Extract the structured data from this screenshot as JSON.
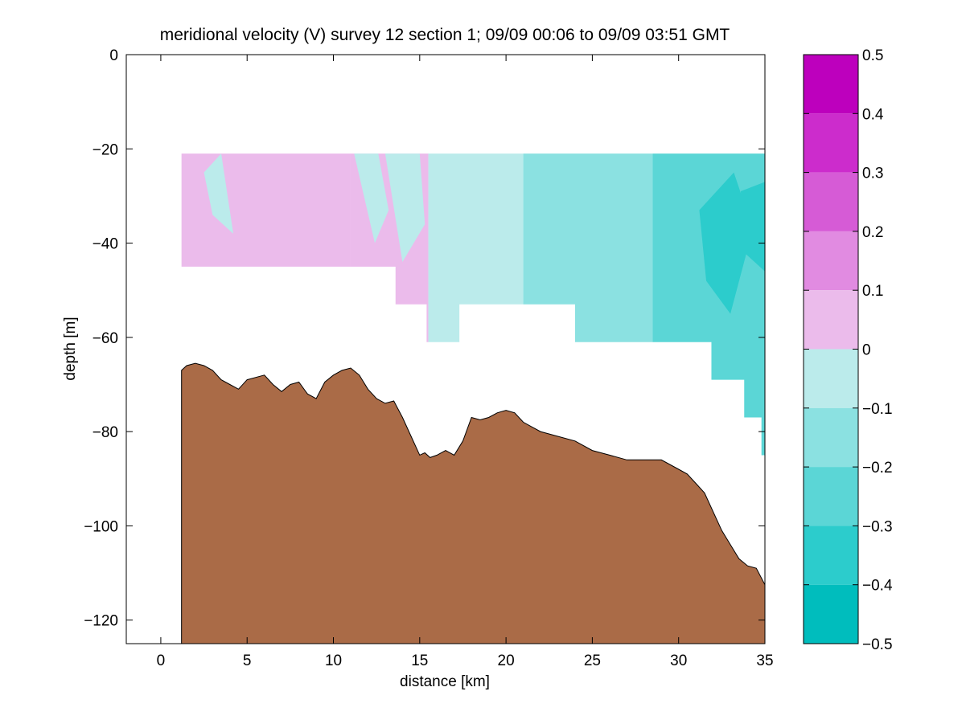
{
  "chart_data": {
    "type": "contour",
    "title": "meridional velocity (V) survey 12 section 1; 09/09 00:06 to 09/09 03:51 GMT",
    "xlabel": "distance [km]",
    "ylabel": "depth [m]",
    "xlim": [
      -2,
      35
    ],
    "ylim": [
      -125,
      0
    ],
    "xticks": [
      0,
      5,
      10,
      15,
      20,
      25,
      30,
      35
    ],
    "xtick_labels": [
      "0",
      "5",
      "10",
      "15",
      "20",
      "25",
      "30",
      "35"
    ],
    "yticks": [
      0,
      -20,
      -40,
      -60,
      -80,
      -100,
      -120
    ],
    "ytick_labels": [
      "0",
      "−20",
      "−40",
      "−60",
      "−80",
      "−100",
      "−120"
    ],
    "colorbar": {
      "range": [
        -0.5,
        0.5
      ],
      "ticks": [
        0.5,
        0.4,
        0.3,
        0.2,
        0.1,
        0,
        -0.1,
        -0.2,
        -0.3,
        -0.4,
        -0.5
      ],
      "tick_labels": [
        "0.5",
        "0.4",
        "0.3",
        "0.2",
        "0.1",
        "0",
        "−0.1",
        "−0.2",
        "−0.3",
        "−0.4",
        "−0.5"
      ],
      "bands": [
        {
          "from": 0.4,
          "to": 0.5,
          "color": "#bd00bd"
        },
        {
          "from": 0.3,
          "to": 0.4,
          "color": "#cc2ccc"
        },
        {
          "from": 0.2,
          "to": 0.3,
          "color": "#d65bd6"
        },
        {
          "from": 0.1,
          "to": 0.2,
          "color": "#e18be1"
        },
        {
          "from": 0.0,
          "to": 0.1,
          "color": "#ebbbeb"
        },
        {
          "from": -0.1,
          "to": 0.0,
          "color": "#bbebeb"
        },
        {
          "from": -0.2,
          "to": -0.1,
          "color": "#8be1e1"
        },
        {
          "from": -0.3,
          "to": -0.2,
          "color": "#5bd6d6"
        },
        {
          "from": -0.4,
          "to": -0.3,
          "color": "#2ccccc"
        },
        {
          "from": -0.5,
          "to": -0.4,
          "color": "#00bdbd"
        }
      ]
    },
    "data_region": {
      "x_range": [
        1.2,
        35
      ],
      "top_depth": -21,
      "bottom_steps": [
        {
          "x0": 1.2,
          "x1": 13.6,
          "depth": -45
        },
        {
          "x0": 13.6,
          "x1": 15.4,
          "depth": -53
        },
        {
          "x0": 15.4,
          "x1": 17.3,
          "depth": -61
        },
        {
          "x0": 17.3,
          "x1": 24.0,
          "depth": -53
        },
        {
          "x0": 24.0,
          "x1": 31.9,
          "depth": -61
        },
        {
          "x0": 31.9,
          "x1": 33.8,
          "depth": -69
        },
        {
          "x0": 33.8,
          "x1": 34.8,
          "depth": -77
        },
        {
          "x0": 34.8,
          "x1": 35.0,
          "depth": -85
        }
      ],
      "velocity_zones": [
        {
          "x0": 1.2,
          "x1": 11.0,
          "level": 0.05
        },
        {
          "x0": 11.0,
          "x1": 15.5,
          "level": 0.05,
          "mixed_with": -0.05
        },
        {
          "x0": 15.5,
          "x1": 21.0,
          "level": -0.05
        },
        {
          "x0": 21.0,
          "x1": 28.5,
          "level": -0.15
        },
        {
          "x0": 28.5,
          "x1": 35.0,
          "level": -0.25
        }
      ]
    },
    "bottom_profile": {
      "name": "seafloor",
      "color": "#aa6b47",
      "x": [
        1.2,
        1.5,
        2.0,
        2.5,
        3.0,
        3.5,
        4.0,
        4.5,
        5.0,
        5.5,
        6.0,
        6.5,
        7.0,
        7.5,
        8.0,
        8.5,
        9.0,
        9.5,
        10.0,
        10.5,
        11.0,
        11.5,
        12.0,
        12.5,
        13.0,
        13.5,
        14.0,
        14.5,
        15.0,
        15.3,
        15.6,
        16.0,
        16.5,
        17.0,
        17.5,
        18.0,
        18.5,
        19.0,
        19.5,
        20.0,
        20.5,
        21.0,
        21.5,
        22.0,
        23.0,
        24.0,
        25.0,
        26.0,
        27.0,
        28.0,
        29.0,
        30.0,
        30.5,
        31.0,
        31.5,
        32.0,
        32.5,
        33.0,
        33.5,
        34.0,
        34.5,
        35.0
      ],
      "y": [
        -67,
        -66,
        -65.5,
        -66,
        -67,
        -69,
        -70,
        -71,
        -69,
        -68.5,
        -68,
        -70,
        -71.5,
        -70,
        -69.5,
        -72,
        -73,
        -69.5,
        -68,
        -67,
        -66.5,
        -68,
        -71,
        -73,
        -74,
        -73.5,
        -77,
        -81,
        -85,
        -84.5,
        -85.5,
        -85,
        -84,
        -85,
        -82,
        -77,
        -77.5,
        -77,
        -76,
        -75.5,
        -76,
        -78,
        -79,
        -80,
        -81,
        -82,
        -84,
        -85,
        -86,
        -86,
        -86,
        -88,
        -89,
        -91,
        -93,
        -97,
        -101,
        -104,
        -107,
        -108.5,
        -109,
        -112.5
      ]
    }
  }
}
